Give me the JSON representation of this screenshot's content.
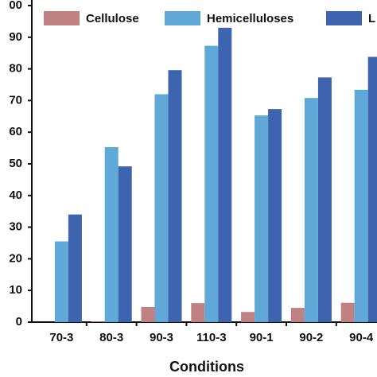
{
  "chart_data": {
    "type": "bar",
    "x_label": "Conditions",
    "categories": [
      "70-3",
      "80-3",
      "90-3",
      "110-3",
      "90-1",
      "90-2",
      "90-4"
    ],
    "series": [
      {
        "name": "Cellulose",
        "color": "#c08182",
        "values": [
          0,
          0.2,
          4.8,
          6,
          3.2,
          4.5,
          6.1
        ]
      },
      {
        "name": "Hemicelluloses",
        "color": "#5fa8d8",
        "values": [
          25.5,
          55.3,
          72,
          87.3,
          65.3,
          70.8,
          73.4
        ]
      },
      {
        "name": "L",
        "color": "#3e64b0",
        "values": [
          34,
          49.2,
          79.6,
          93,
          67.3,
          77.3,
          83.8
        ]
      }
    ],
    "ylim": [
      0,
      100
    ],
    "yticks": [
      0,
      10,
      20,
      30,
      40,
      50,
      60,
      70,
      80,
      90,
      {
        "value": 100,
        "label": "00"
      }
    ],
    "legend": "top"
  }
}
